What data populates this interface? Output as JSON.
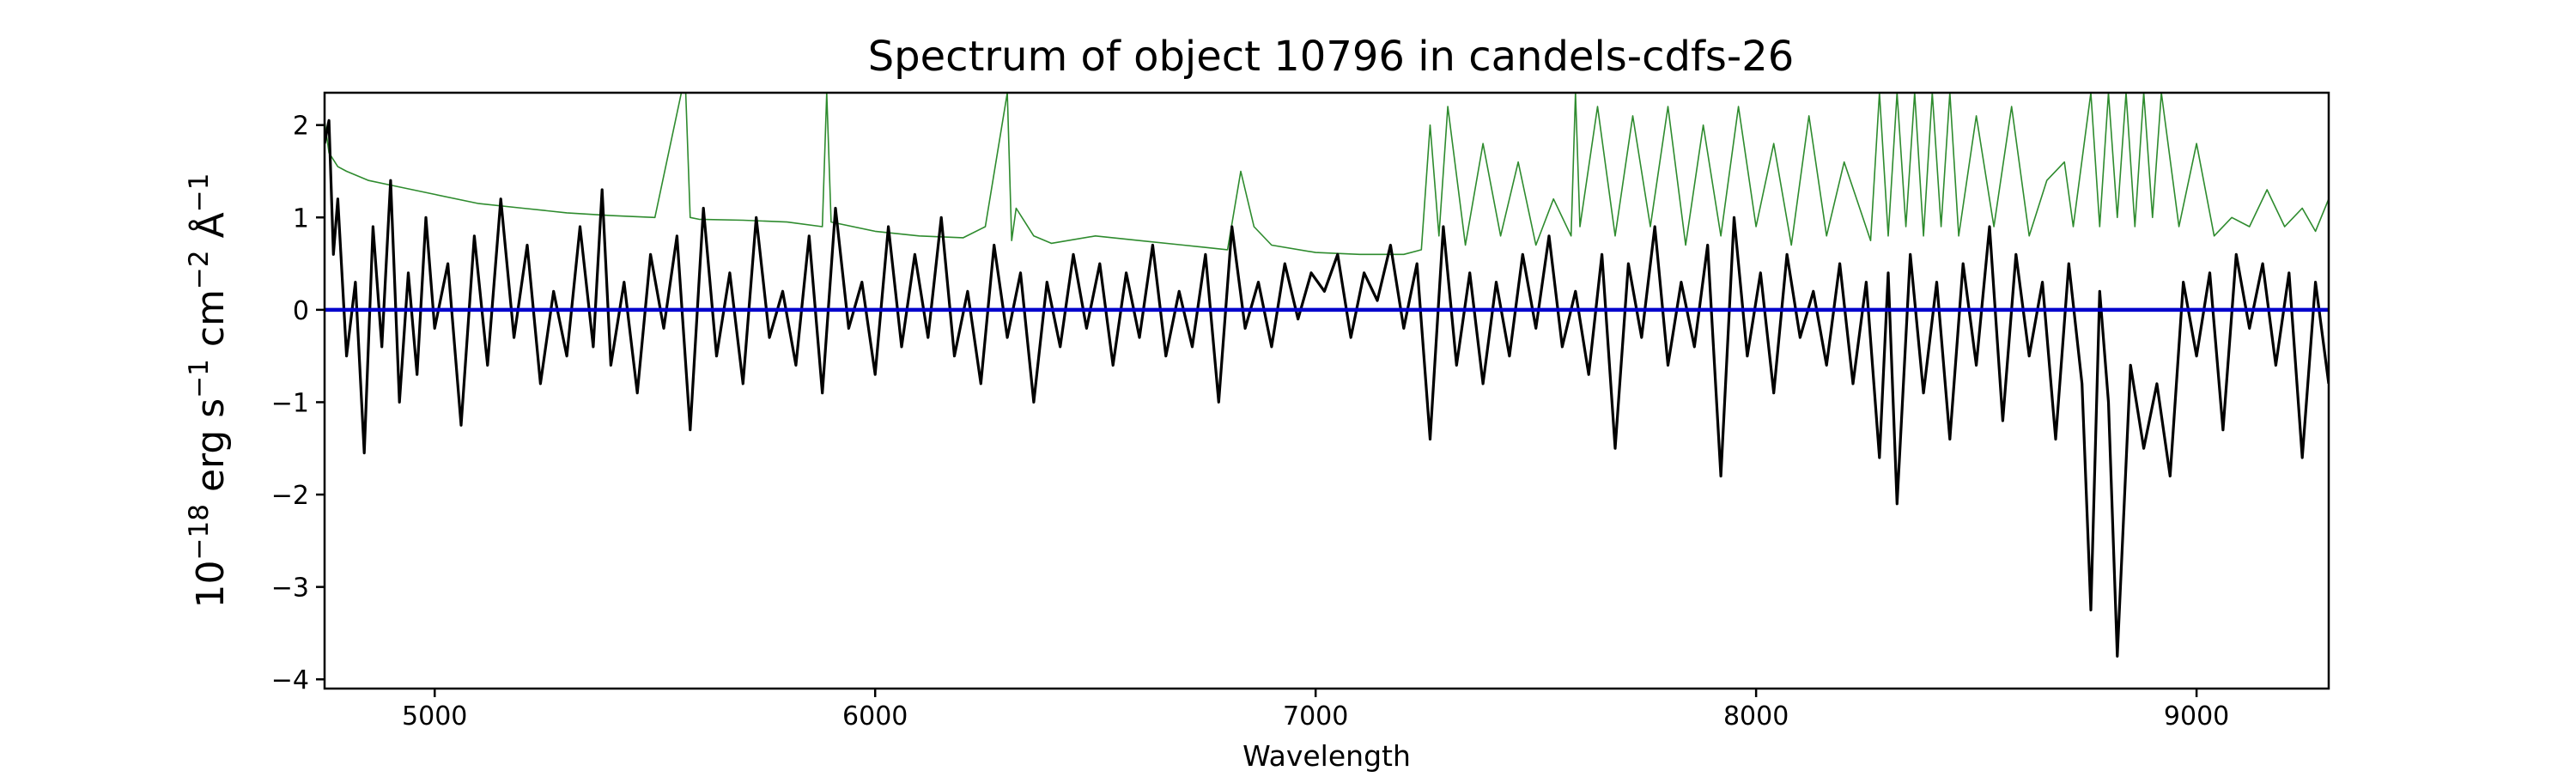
{
  "chart_data": {
    "type": "line",
    "title": "Spectrum of object 10796 in candels-cdfs-26",
    "xlabel": "Wavelength",
    "ylabel_main": "10",
    "ylabel_exp1": "−18",
    "ylabel_mid1": " erg s",
    "ylabel_exp2": "−1",
    "ylabel_mid2": " cm",
    "ylabel_exp3": "−2",
    "ylabel_mid3": " Å",
    "ylabel_exp4": "−1",
    "xlim": [
      4750,
      9300
    ],
    "ylim": [
      -4.1,
      2.35
    ],
    "x_ticks": [
      5000,
      6000,
      7000,
      8000,
      9000
    ],
    "x_tick_labels": [
      "5000",
      "6000",
      "7000",
      "8000",
      "9000"
    ],
    "y_ticks": [
      2,
      1,
      0,
      -1,
      -2,
      -3,
      -4
    ],
    "y_tick_labels": [
      "2",
      "1",
      "0",
      "−1",
      "−2",
      "−3",
      "−4"
    ],
    "grid": false,
    "colors": {
      "flux": "#000000",
      "noise": "#2e8b2e",
      "zero": "#0000cc"
    },
    "series": [
      {
        "role": "flux",
        "x": [
          4750,
          4760,
          4770,
          4780,
          4800,
          4820,
          4840,
          4860,
          4880,
          4900,
          4920,
          4940,
          4960,
          4980,
          5000,
          5030,
          5060,
          5090,
          5120,
          5150,
          5180,
          5210,
          5240,
          5270,
          5300,
          5330,
          5360,
          5380,
          5400,
          5430,
          5460,
          5490,
          5520,
          5550,
          5580,
          5610,
          5640,
          5670,
          5700,
          5730,
          5760,
          5790,
          5820,
          5850,
          5880,
          5910,
          5940,
          5970,
          6000,
          6030,
          6060,
          6090,
          6120,
          6150,
          6180,
          6210,
          6240,
          6270,
          6300,
          6330,
          6360,
          6390,
          6420,
          6450,
          6480,
          6510,
          6540,
          6570,
          6600,
          6630,
          6660,
          6690,
          6720,
          6750,
          6780,
          6810,
          6840,
          6870,
          6900,
          6930,
          6960,
          6990,
          7020,
          7050,
          7080,
          7110,
          7140,
          7170,
          7200,
          7230,
          7260,
          7290,
          7320,
          7350,
          7380,
          7410,
          7440,
          7470,
          7500,
          7530,
          7560,
          7590,
          7620,
          7650,
          7680,
          7710,
          7740,
          7770,
          7800,
          7830,
          7860,
          7890,
          7920,
          7950,
          7980,
          8010,
          8040,
          8070,
          8100,
          8130,
          8160,
          8190,
          8220,
          8250,
          8280,
          8300,
          8320,
          8350,
          8380,
          8410,
          8440,
          8470,
          8500,
          8530,
          8560,
          8590,
          8620,
          8650,
          8680,
          8710,
          8740,
          8760,
          8780,
          8800,
          8820,
          8850,
          8880,
          8910,
          8940,
          8970,
          9000,
          9030,
          9060,
          9090,
          9120,
          9150,
          9180,
          9210,
          9240,
          9270,
          9300
        ],
        "y": [
          1.8,
          2.05,
          0.6,
          1.2,
          -0.5,
          0.3,
          -1.55,
          0.9,
          -0.4,
          1.4,
          -1.0,
          0.4,
          -0.7,
          1.0,
          -0.2,
          0.5,
          -1.25,
          0.8,
          -0.6,
          1.2,
          -0.3,
          0.7,
          -0.8,
          0.2,
          -0.5,
          0.9,
          -0.4,
          1.3,
          -0.6,
          0.3,
          -0.9,
          0.6,
          -0.2,
          0.8,
          -1.3,
          1.1,
          -0.5,
          0.4,
          -0.8,
          1.0,
          -0.3,
          0.2,
          -0.6,
          0.8,
          -0.9,
          1.1,
          -0.2,
          0.3,
          -0.7,
          0.9,
          -0.4,
          0.6,
          -0.3,
          1.0,
          -0.5,
          0.2,
          -0.8,
          0.7,
          -0.3,
          0.4,
          -1.0,
          0.3,
          -0.4,
          0.6,
          -0.2,
          0.5,
          -0.6,
          0.4,
          -0.3,
          0.7,
          -0.5,
          0.2,
          -0.4,
          0.6,
          -1.0,
          0.9,
          -0.2,
          0.3,
          -0.4,
          0.5,
          -0.1,
          0.4,
          0.2,
          0.6,
          -0.3,
          0.4,
          0.1,
          0.7,
          -0.2,
          0.5,
          -1.4,
          0.9,
          -0.6,
          0.4,
          -0.8,
          0.3,
          -0.5,
          0.6,
          -0.2,
          0.8,
          -0.4,
          0.2,
          -0.7,
          0.6,
          -1.5,
          0.5,
          -0.3,
          0.9,
          -0.6,
          0.3,
          -0.4,
          0.7,
          -1.8,
          1.0,
          -0.5,
          0.4,
          -0.9,
          0.6,
          -0.3,
          0.2,
          -0.6,
          0.5,
          -0.8,
          0.3,
          -1.6,
          0.4,
          -2.1,
          0.6,
          -0.9,
          0.3,
          -1.4,
          0.5,
          -0.6,
          0.9,
          -1.2,
          0.6,
          -0.5,
          0.3,
          -1.4,
          0.5,
          -0.8,
          -3.25,
          0.2,
          -1.0,
          -3.75,
          -0.6,
          -1.5,
          -0.8,
          -1.8,
          0.3,
          -0.5,
          0.4,
          -1.3,
          0.6,
          -0.2,
          0.5,
          -0.6,
          0.4,
          -1.6,
          0.3,
          -0.8
        ]
      },
      {
        "role": "noise",
        "x": [
          4750,
          4760,
          4780,
          4800,
          4850,
          4900,
          4950,
          5000,
          5100,
          5200,
          5300,
          5400,
          5500,
          5560,
          5570,
          5580,
          5600,
          5700,
          5800,
          5880,
          5890,
          5900,
          6000,
          6100,
          6200,
          6250,
          6300,
          6310,
          6320,
          6360,
          6400,
          6500,
          6600,
          6700,
          6800,
          6830,
          6860,
          6900,
          7000,
          7100,
          7200,
          7240,
          7260,
          7280,
          7300,
          7340,
          7380,
          7420,
          7460,
          7500,
          7540,
          7580,
          7590,
          7600,
          7640,
          7680,
          7720,
          7760,
          7800,
          7840,
          7880,
          7920,
          7960,
          8000,
          8040,
          8080,
          8120,
          8160,
          8200,
          8260,
          8280,
          8300,
          8320,
          8340,
          8360,
          8380,
          8400,
          8420,
          8440,
          8460,
          8500,
          8540,
          8580,
          8620,
          8660,
          8700,
          8720,
          8760,
          8780,
          8800,
          8820,
          8840,
          8860,
          8880,
          8900,
          8920,
          8960,
          9000,
          9040,
          9080,
          9120,
          9160,
          9200,
          9240,
          9270,
          9300
        ],
        "y": [
          2.05,
          1.7,
          1.55,
          1.5,
          1.4,
          1.35,
          1.3,
          1.25,
          1.15,
          1.1,
          1.05,
          1.02,
          1.0,
          2.35,
          2.35,
          1.0,
          0.98,
          0.97,
          0.95,
          0.9,
          2.35,
          0.95,
          0.85,
          0.8,
          0.78,
          0.9,
          2.35,
          0.75,
          1.1,
          0.8,
          0.72,
          0.8,
          0.75,
          0.7,
          0.65,
          1.5,
          0.9,
          0.7,
          0.62,
          0.6,
          0.6,
          0.65,
          2.0,
          0.8,
          2.2,
          0.7,
          1.8,
          0.8,
          1.6,
          0.7,
          1.2,
          0.8,
          2.35,
          0.9,
          2.2,
          0.8,
          2.1,
          0.9,
          2.2,
          0.7,
          2.0,
          0.8,
          2.2,
          0.9,
          1.8,
          0.7,
          2.1,
          0.8,
          1.6,
          0.75,
          2.35,
          0.8,
          2.35,
          0.9,
          2.35,
          0.8,
          2.35,
          0.9,
          2.35,
          0.8,
          2.1,
          0.9,
          2.2,
          0.8,
          1.4,
          1.6,
          0.9,
          2.35,
          0.9,
          2.35,
          1.0,
          2.35,
          0.9,
          2.35,
          1.0,
          2.35,
          0.9,
          1.8,
          0.8,
          1.0,
          0.9,
          1.3,
          0.9,
          1.1,
          0.85,
          1.2
        ]
      },
      {
        "role": "zero",
        "x": [
          4750,
          9300
        ],
        "y": [
          0,
          0
        ]
      }
    ]
  }
}
